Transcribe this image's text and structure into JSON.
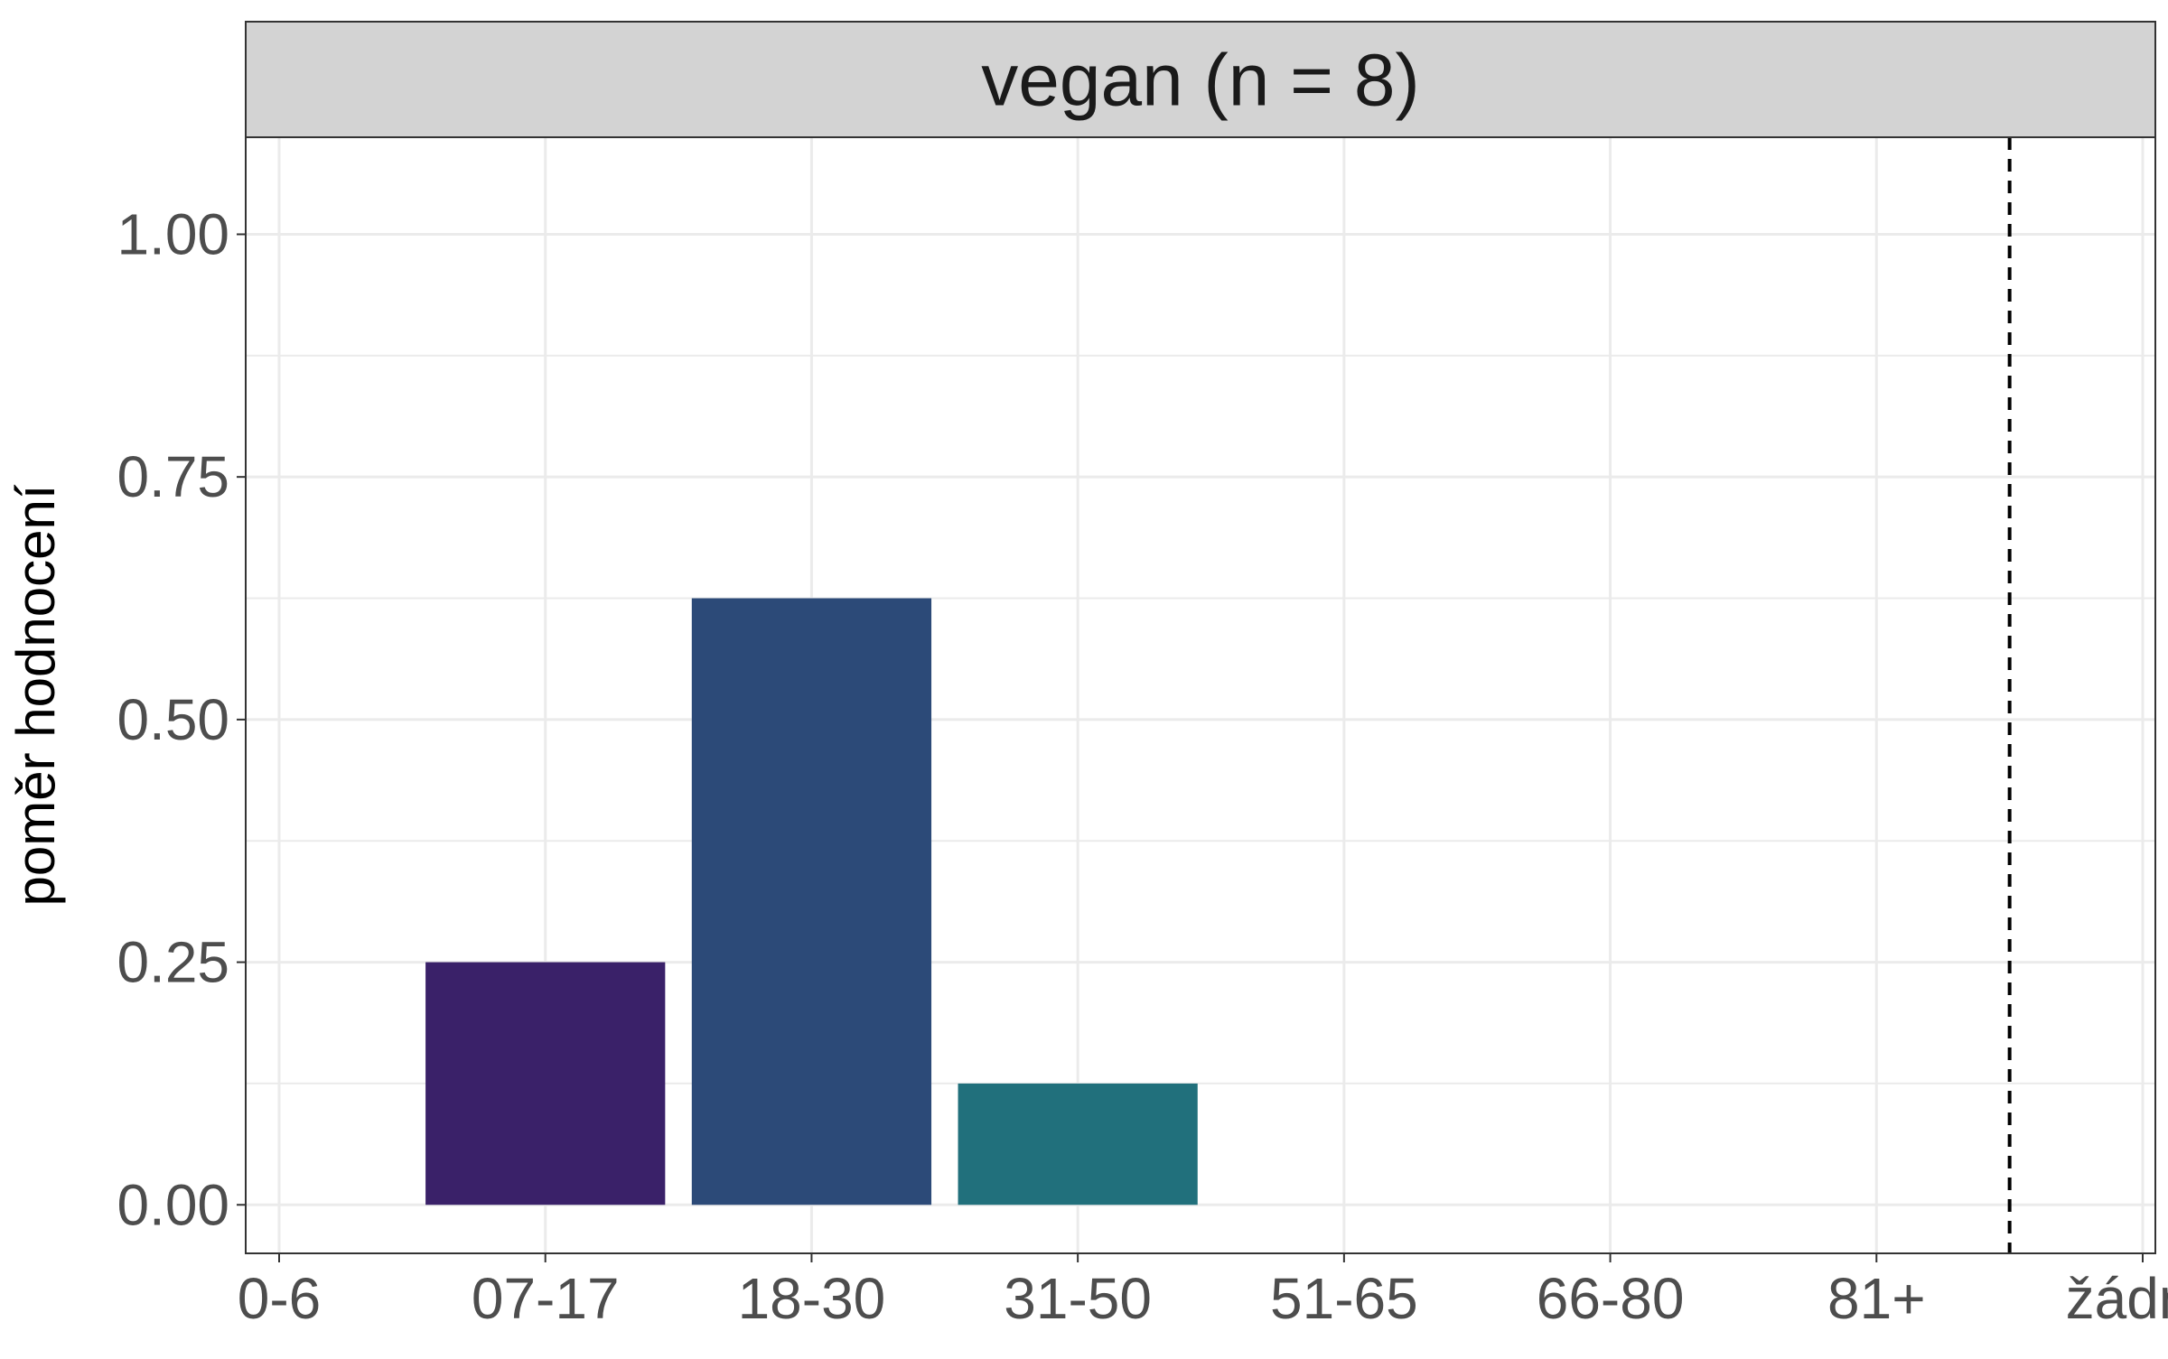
{
  "chart_data": {
    "type": "bar",
    "title": "vegan (n = 8)",
    "xlabel": "",
    "ylabel": "poměr hodnocení",
    "categories": [
      "0-6",
      "07-17",
      "18-30",
      "31-50",
      "51-65",
      "66-80",
      "81+",
      "žádný"
    ],
    "values": [
      0,
      0.25,
      0.625,
      0.125,
      0,
      0,
      0,
      0
    ],
    "bar_colors": [
      "#440154",
      "#3a2169",
      "#2c4a78",
      "#21707c",
      "#22908b",
      "#3aaf77",
      "#85cc4d",
      "#fde725"
    ],
    "ylim": [
      -0.05,
      1.1
    ],
    "yticks": [
      0,
      0.25,
      0.5,
      0.75,
      1
    ],
    "ytick_labels": [
      "0.00",
      "0.25",
      "0.50",
      "0.75",
      "1.00"
    ],
    "separator_after_category": "81+",
    "grid": true,
    "legend": "none",
    "strip_color": "#d3d3d3",
    "grid_color": "#ebebeb"
  }
}
